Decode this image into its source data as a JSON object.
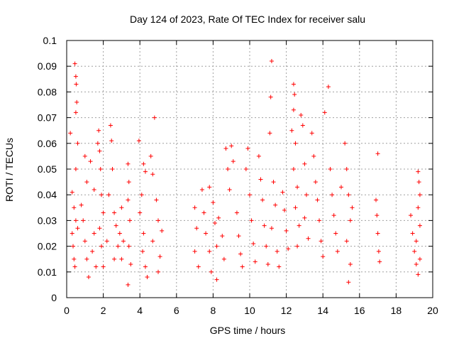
{
  "chart_data": {
    "type": "scatter",
    "title": "Day 124 of 2023, Rate Of TEC Index for receiver salu",
    "xlabel": "GPS time / hours",
    "ylabel": "ROTI / TECUs",
    "xlim": [
      0,
      20
    ],
    "ylim": [
      0,
      0.1
    ],
    "x_ticks": [
      "0",
      "2",
      "4",
      "6",
      "8",
      "10",
      "12",
      "14",
      "16",
      "18",
      "20"
    ],
    "y_ticks": [
      "0",
      "0.01",
      "0.02",
      "0.03",
      "0.04",
      "0.05",
      "0.06",
      "0.07",
      "0.08",
      "0.09",
      "0.1"
    ],
    "grid": true,
    "marker": "+",
    "color": "#ff0000",
    "series": [
      {
        "points": [
          [
            0.2,
            0.064
          ],
          [
            0.45,
            0.091
          ],
          [
            0.5,
            0.086
          ],
          [
            0.52,
            0.083
          ],
          [
            0.55,
            0.076
          ],
          [
            0.5,
            0.072
          ],
          [
            0.6,
            0.06
          ],
          [
            0.5,
            0.05
          ],
          [
            0.3,
            0.041
          ],
          [
            0.4,
            0.035
          ],
          [
            0.5,
            0.03
          ],
          [
            0.3,
            0.025
          ],
          [
            0.35,
            0.02
          ],
          [
            0.4,
            0.015
          ],
          [
            0.45,
            0.012
          ],
          [
            0.6,
            0.027
          ],
          [
            0.8,
            0.036
          ],
          [
            0.9,
            0.03
          ],
          [
            1.0,
            0.022
          ],
          [
            1.1,
            0.015
          ],
          [
            1.2,
            0.008
          ],
          [
            1.0,
            0.055
          ],
          [
            1.3,
            0.053
          ],
          [
            1.1,
            0.045
          ],
          [
            1.5,
            0.042
          ],
          [
            1.5,
            0.025
          ],
          [
            1.4,
            0.018
          ],
          [
            1.6,
            0.012
          ],
          [
            1.7,
            0.06
          ],
          [
            1.75,
            0.065
          ],
          [
            1.8,
            0.057
          ],
          [
            1.85,
            0.05
          ],
          [
            1.9,
            0.04
          ],
          [
            2.0,
            0.033
          ],
          [
            1.8,
            0.027
          ],
          [
            1.9,
            0.02
          ],
          [
            2.0,
            0.012
          ],
          [
            2.2,
            0.022
          ],
          [
            2.4,
            0.067
          ],
          [
            2.45,
            0.061
          ],
          [
            2.5,
            0.05
          ],
          [
            2.3,
            0.04
          ],
          [
            2.6,
            0.033
          ],
          [
            2.7,
            0.028
          ],
          [
            2.8,
            0.02
          ],
          [
            2.6,
            0.015
          ],
          [
            2.9,
            0.025
          ],
          [
            3.0,
            0.035
          ],
          [
            3.0,
            0.015
          ],
          [
            3.1,
            0.022
          ],
          [
            3.35,
            0.052
          ],
          [
            3.4,
            0.045
          ],
          [
            3.35,
            0.038
          ],
          [
            3.45,
            0.03
          ],
          [
            3.4,
            0.02
          ],
          [
            3.5,
            0.013
          ],
          [
            3.35,
            0.005
          ],
          [
            3.95,
            0.061
          ],
          [
            4.2,
            0.052
          ],
          [
            4.3,
            0.049
          ],
          [
            4.1,
            0.04
          ],
          [
            4.0,
            0.033
          ],
          [
            4.2,
            0.025
          ],
          [
            4.15,
            0.018
          ],
          [
            4.3,
            0.012
          ],
          [
            4.4,
            0.008
          ],
          [
            4.6,
            0.055
          ],
          [
            4.7,
            0.048
          ],
          [
            4.8,
            0.07
          ],
          [
            4.9,
            0.038
          ],
          [
            5.0,
            0.03
          ],
          [
            4.7,
            0.022
          ],
          [
            5.1,
            0.016
          ],
          [
            5.0,
            0.01
          ],
          [
            5.2,
            0.026
          ],
          [
            7.0,
            0.035
          ],
          [
            7.1,
            0.027
          ],
          [
            7.0,
            0.018
          ],
          [
            7.2,
            0.012
          ],
          [
            7.4,
            0.042
          ],
          [
            7.5,
            0.033
          ],
          [
            7.6,
            0.025
          ],
          [
            7.8,
            0.018
          ],
          [
            7.9,
            0.01
          ],
          [
            7.8,
            0.043
          ],
          [
            8.0,
            0.037
          ],
          [
            8.1,
            0.029
          ],
          [
            8.2,
            0.02
          ],
          [
            8.2,
            0.007
          ],
          [
            8.3,
            0.031
          ],
          [
            8.5,
            0.024
          ],
          [
            8.6,
            0.015
          ],
          [
            8.8,
            0.05
          ],
          [
            8.7,
            0.058
          ],
          [
            8.9,
            0.042
          ],
          [
            9.0,
            0.059
          ],
          [
            9.1,
            0.053
          ],
          [
            9.3,
            0.033
          ],
          [
            9.4,
            0.024
          ],
          [
            9.5,
            0.017
          ],
          [
            9.6,
            0.012
          ],
          [
            9.8,
            0.05
          ],
          [
            9.9,
            0.058
          ],
          [
            10.0,
            0.04
          ],
          [
            10.1,
            0.03
          ],
          [
            10.2,
            0.021
          ],
          [
            10.3,
            0.014
          ],
          [
            10.5,
            0.055
          ],
          [
            10.6,
            0.046
          ],
          [
            10.7,
            0.038
          ],
          [
            10.8,
            0.028
          ],
          [
            10.9,
            0.02
          ],
          [
            11.0,
            0.013
          ],
          [
            11.2,
            0.092
          ],
          [
            11.15,
            0.078
          ],
          [
            11.1,
            0.064
          ],
          [
            11.3,
            0.045
          ],
          [
            11.4,
            0.036
          ],
          [
            11.2,
            0.027
          ],
          [
            11.5,
            0.018
          ],
          [
            11.6,
            0.012
          ],
          [
            11.8,
            0.041
          ],
          [
            11.9,
            0.034
          ],
          [
            12.0,
            0.026
          ],
          [
            12.1,
            0.019
          ],
          [
            12.4,
            0.083
          ],
          [
            12.45,
            0.079
          ],
          [
            12.4,
            0.073
          ],
          [
            12.3,
            0.065
          ],
          [
            12.5,
            0.06
          ],
          [
            12.4,
            0.05
          ],
          [
            12.6,
            0.043
          ],
          [
            12.5,
            0.035
          ],
          [
            12.7,
            0.028
          ],
          [
            12.6,
            0.02
          ],
          [
            12.8,
            0.071
          ],
          [
            12.9,
            0.067
          ],
          [
            13.0,
            0.052
          ],
          [
            13.1,
            0.04
          ],
          [
            13.0,
            0.031
          ],
          [
            13.2,
            0.023
          ],
          [
            13.4,
            0.064
          ],
          [
            13.5,
            0.055
          ],
          [
            13.6,
            0.045
          ],
          [
            13.7,
            0.038
          ],
          [
            13.8,
            0.03
          ],
          [
            13.9,
            0.022
          ],
          [
            14.0,
            0.016
          ],
          [
            14.1,
            0.072
          ],
          [
            14.3,
            0.082
          ],
          [
            14.4,
            0.05
          ],
          [
            14.5,
            0.04
          ],
          [
            14.6,
            0.032
          ],
          [
            14.7,
            0.025
          ],
          [
            14.8,
            0.018
          ],
          [
            15.0,
            0.043
          ],
          [
            15.2,
            0.06
          ],
          [
            15.3,
            0.05
          ],
          [
            15.4,
            0.04
          ],
          [
            15.5,
            0.03
          ],
          [
            15.3,
            0.022
          ],
          [
            15.5,
            0.013
          ],
          [
            15.4,
            0.006
          ],
          [
            15.6,
            0.035
          ],
          [
            16.9,
            0.038
          ],
          [
            16.95,
            0.032
          ],
          [
            17.0,
            0.056
          ],
          [
            17.0,
            0.025
          ],
          [
            17.05,
            0.018
          ],
          [
            17.1,
            0.014
          ],
          [
            18.8,
            0.032
          ],
          [
            18.9,
            0.025
          ],
          [
            19.0,
            0.018
          ],
          [
            19.1,
            0.013
          ],
          [
            19.2,
            0.049
          ],
          [
            19.25,
            0.045
          ],
          [
            19.3,
            0.04
          ],
          [
            19.2,
            0.035
          ],
          [
            19.3,
            0.028
          ],
          [
            19.1,
            0.022
          ],
          [
            19.3,
            0.015
          ],
          [
            19.2,
            0.009
          ]
        ]
      }
    ]
  }
}
